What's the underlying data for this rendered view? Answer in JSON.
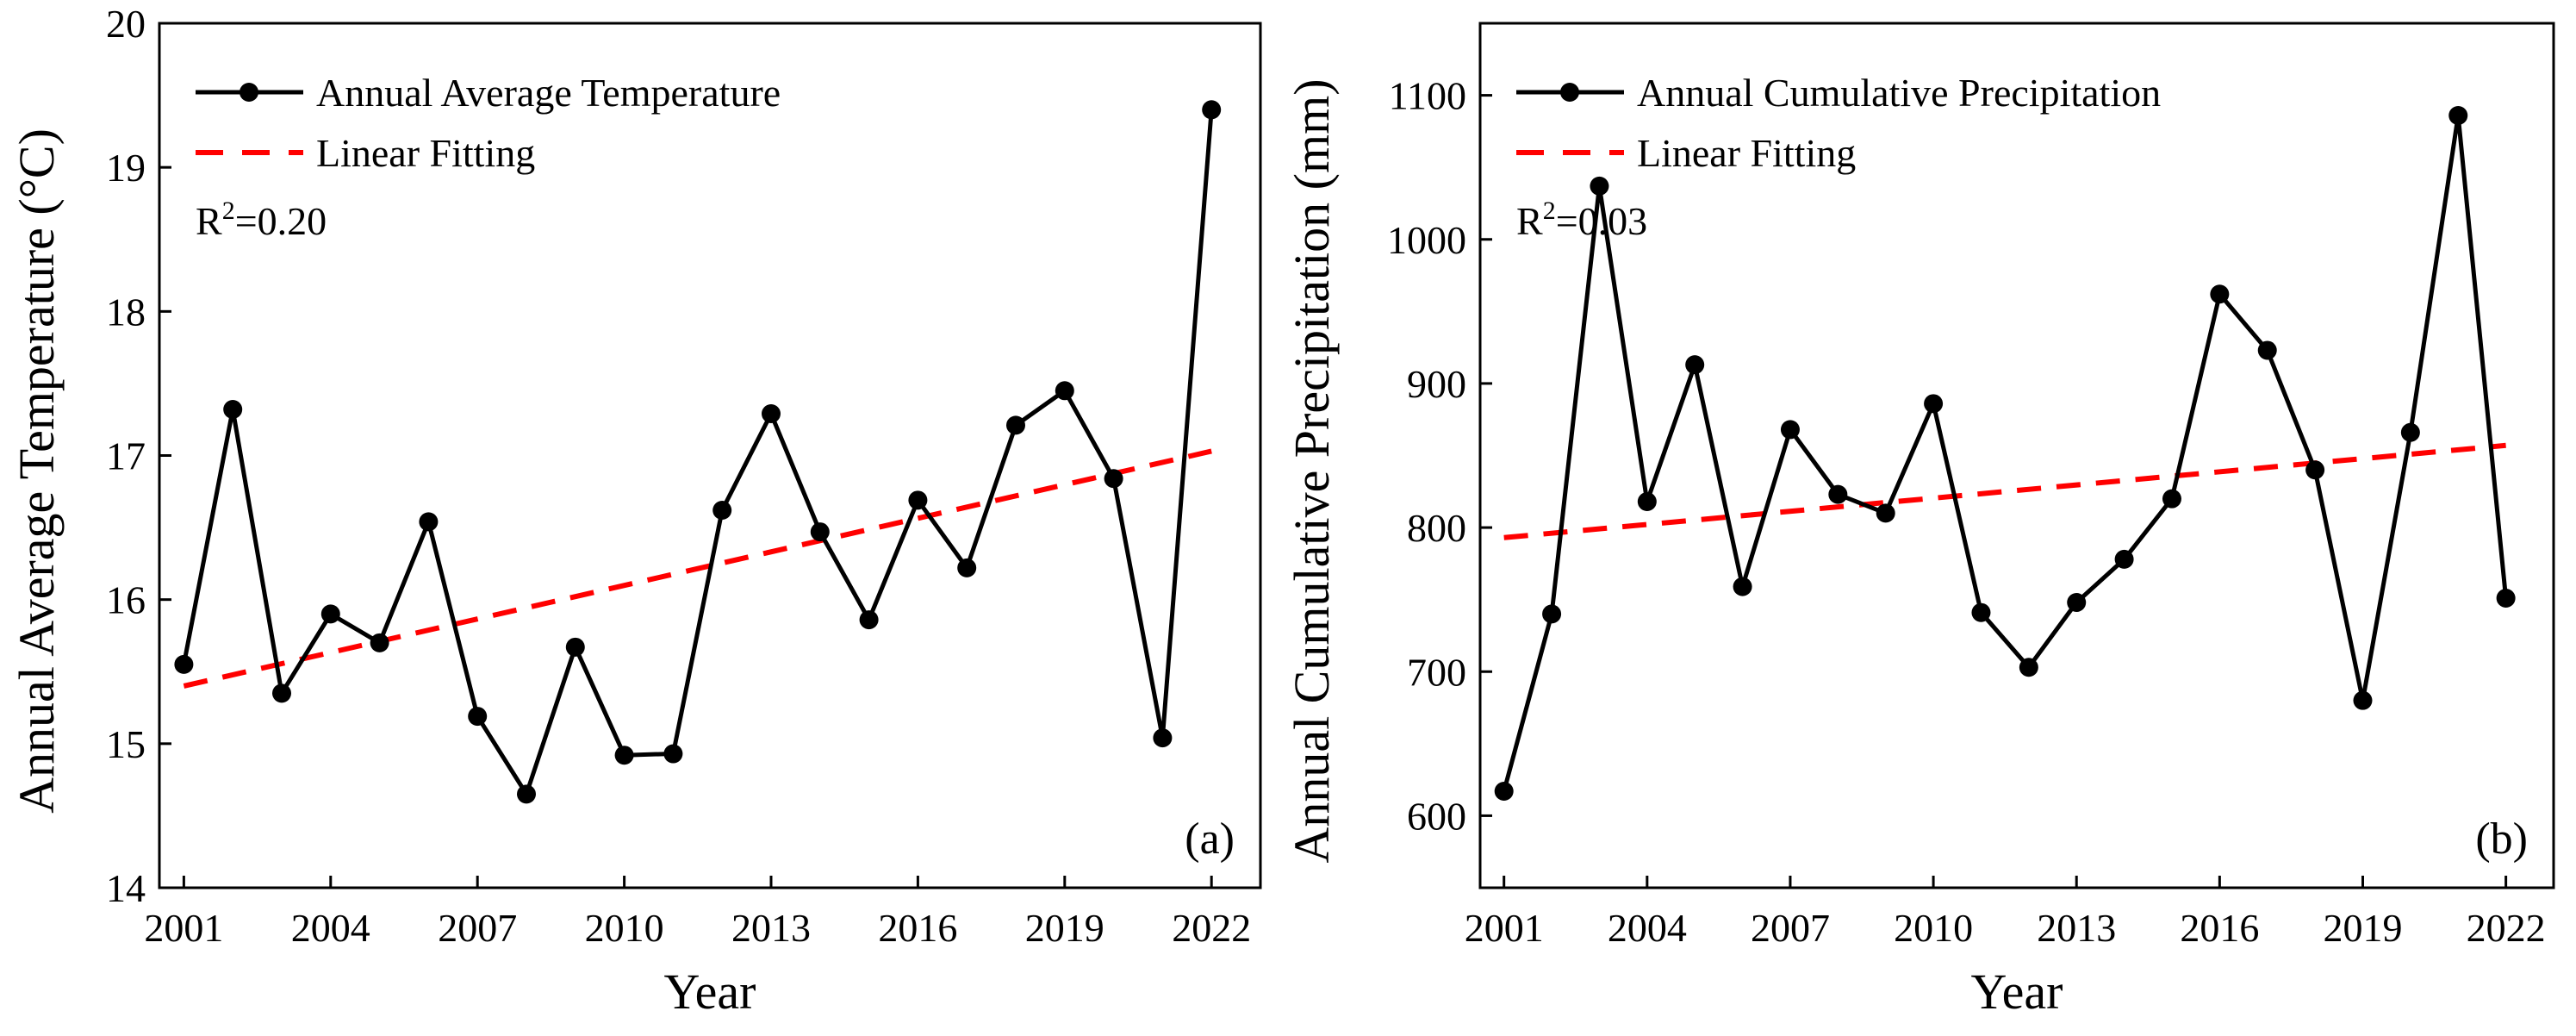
{
  "chart_data": [
    {
      "type": "line",
      "panel_label": "(a)",
      "xlabel": "Year",
      "ylabel": "Annual Average Temperature (°C)",
      "xlim": [
        2000.5,
        2023
      ],
      "ylim": [
        14,
        20
      ],
      "xticks": [
        2001,
        2004,
        2007,
        2010,
        2013,
        2016,
        2019,
        2022
      ],
      "yticks": [
        14,
        15,
        16,
        17,
        18,
        19,
        20
      ],
      "x": [
        2001,
        2002,
        2003,
        2004,
        2005,
        2006,
        2007,
        2008,
        2009,
        2010,
        2011,
        2012,
        2013,
        2014,
        2015,
        2016,
        2017,
        2018,
        2019,
        2020,
        2021,
        2022
      ],
      "series": [
        {
          "name": "Annual Average Temperature",
          "style": "line-marker",
          "color": "#000000",
          "values": [
            15.55,
            17.32,
            15.35,
            15.9,
            15.7,
            16.54,
            15.19,
            14.65,
            15.67,
            14.92,
            14.93,
            16.62,
            17.29,
            16.47,
            15.86,
            16.69,
            16.22,
            17.21,
            17.45,
            16.84,
            15.04,
            19.4
          ]
        },
        {
          "name": "Linear Fitting",
          "style": "dashed",
          "color": "#ff0000",
          "x": [
            2001,
            2022
          ],
          "values": [
            15.4,
            17.03
          ]
        }
      ],
      "annotation": {
        "prefix": "R",
        "sup": "2",
        "suffix": "=0.20"
      },
      "legend_position": "top-left"
    },
    {
      "type": "line",
      "panel_label": "(b)",
      "xlabel": "Year",
      "ylabel": "Annual Cumulative Precipitation (mm)",
      "xlim": [
        2000.5,
        2023
      ],
      "ylim": [
        550,
        1150
      ],
      "xticks": [
        2001,
        2004,
        2007,
        2010,
        2013,
        2016,
        2019,
        2022
      ],
      "yticks": [
        600,
        700,
        800,
        900,
        1000,
        1100
      ],
      "x": [
        2001,
        2002,
        2003,
        2004,
        2005,
        2006,
        2007,
        2008,
        2009,
        2010,
        2011,
        2012,
        2013,
        2014,
        2015,
        2016,
        2017,
        2018,
        2019,
        2020,
        2021,
        2022
      ],
      "series": [
        {
          "name": "Annual Cumulative Precipitation",
          "style": "line-marker",
          "color": "#000000",
          "values": [
            617,
            740,
            1037,
            818,
            913,
            759,
            868,
            823,
            810,
            886,
            741,
            703,
            748,
            778,
            820,
            962,
            923,
            840,
            680,
            866,
            1086,
            751
          ]
        },
        {
          "name": "Linear Fitting",
          "style": "dashed",
          "color": "#ff0000",
          "x": [
            2001,
            2022
          ],
          "values": [
            793,
            857
          ]
        }
      ],
      "annotation": {
        "prefix": "R",
        "sup": "2",
        "suffix": "=0.03"
      },
      "legend_position": "top-left"
    }
  ]
}
